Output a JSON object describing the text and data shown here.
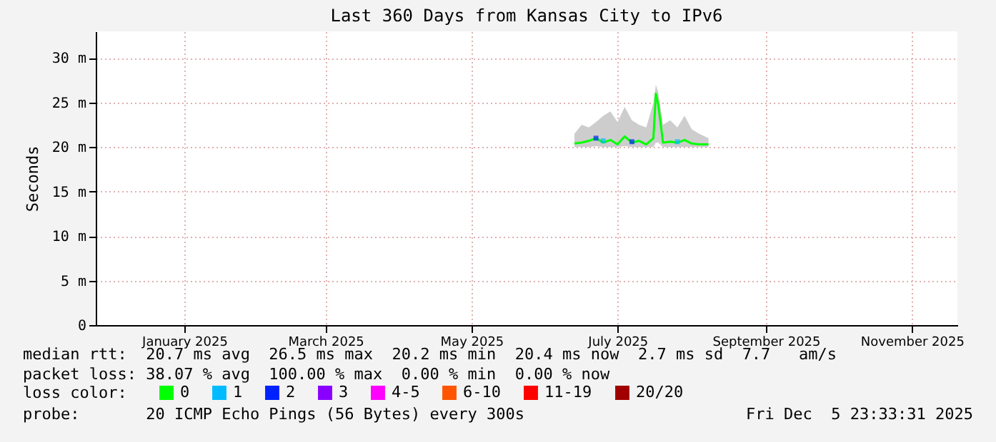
{
  "chart_data": {
    "type": "line",
    "title": "Last 360 Days from Kansas City to IPv6",
    "ylabel": "Seconds",
    "xlim": [
      "2024-12-10",
      "2025-12-05"
    ],
    "xticks": [
      {
        "value": "2025-01-16",
        "label": "January 2025"
      },
      {
        "value": "2025-03-16",
        "label": "March 2025"
      },
      {
        "value": "2025-05-16",
        "label": "May 2025"
      },
      {
        "value": "2025-07-16",
        "label": "July 2025"
      },
      {
        "value": "2025-09-16",
        "label": "September 2025"
      },
      {
        "value": "2025-11-16",
        "label": "November 2025"
      }
    ],
    "ylim": [
      0,
      33
    ],
    "yticks": [
      0,
      {
        "value": 5,
        "label": "5 m"
      },
      {
        "value": 10,
        "label": "10 m"
      },
      {
        "value": 15,
        "label": "15 m"
      },
      {
        "value": 20,
        "label": "20 m"
      },
      {
        "value": 25,
        "label": "25 m"
      },
      {
        "value": 30,
        "label": "30 m"
      }
    ],
    "grid": true,
    "legend": "bottom left",
    "legend_title": "loss color:",
    "series": [
      {
        "name": "0",
        "color": "#00ff00",
        "x": [
          "2025-06-28",
          "2025-07-01",
          "2025-07-04",
          "2025-07-07",
          "2025-07-10",
          "2025-07-13",
          "2025-07-16",
          "2025-07-19",
          "2025-07-22",
          "2025-07-25",
          "2025-07-28",
          "2025-07-31",
          "2025-08-01",
          "2025-08-02",
          "2025-08-04",
          "2025-08-07",
          "2025-08-10",
          "2025-08-13",
          "2025-08-16",
          "2025-08-19",
          "2025-08-23"
        ],
        "values": [
          20.4,
          20.5,
          20.7,
          21.0,
          20.5,
          20.8,
          20.3,
          21.2,
          20.5,
          20.7,
          20.3,
          21.0,
          26.0,
          24.8,
          20.5,
          20.6,
          20.5,
          20.8,
          20.4,
          20.3,
          20.3
        ],
        "lower": [
          20.0,
          20.0,
          20.0,
          20.1,
          20.0,
          20.0,
          20.0,
          20.1,
          20.0,
          20.0,
          20.0,
          20.0,
          20.5,
          20.5,
          20.0,
          20.0,
          20.0,
          20.0,
          20.0,
          20.0,
          20.0
        ],
        "upper": [
          21.5,
          22.5,
          22.2,
          22.8,
          23.5,
          24.0,
          22.8,
          24.5,
          23.0,
          22.5,
          22.2,
          25.0,
          27.0,
          26.2,
          22.5,
          23.0,
          22.2,
          23.5,
          22.0,
          21.5,
          21.0
        ]
      },
      {
        "name": "1",
        "color": "#00bbff",
        "type": "scatter",
        "x": [
          "2025-07-10",
          "2025-08-10"
        ],
        "values": [
          20.7,
          20.6
        ]
      },
      {
        "name": "2",
        "color": "#0022ff",
        "type": "scatter",
        "x": [
          "2025-07-07",
          "2025-07-22"
        ],
        "values": [
          21.0,
          20.6
        ]
      },
      {
        "name": "3",
        "color": "#8a00ff",
        "type": "scatter"
      },
      {
        "name": "4-5",
        "color": "#ff00ff",
        "type": "scatter"
      },
      {
        "name": "6-10",
        "color": "#ff5500",
        "type": "scatter"
      },
      {
        "name": "11-19",
        "color": "#ff0000",
        "type": "scatter"
      },
      {
        "name": "20/20",
        "color": "#a10000",
        "type": "scatter"
      }
    ],
    "annotations": [
      "median rtt:  20.7 ms avg  26.5 ms max  20.2 ms min  20.4 ms now  2.7 ms sd  7.7   am/s",
      "packet loss: 38.07 % avg  100.00 % max  0.00 % min  0.00 % now",
      "probe:       20 ICMP Echo Pings (56 Bytes) every 300s",
      "Fri Dec  5 23:33:31 2025"
    ]
  }
}
